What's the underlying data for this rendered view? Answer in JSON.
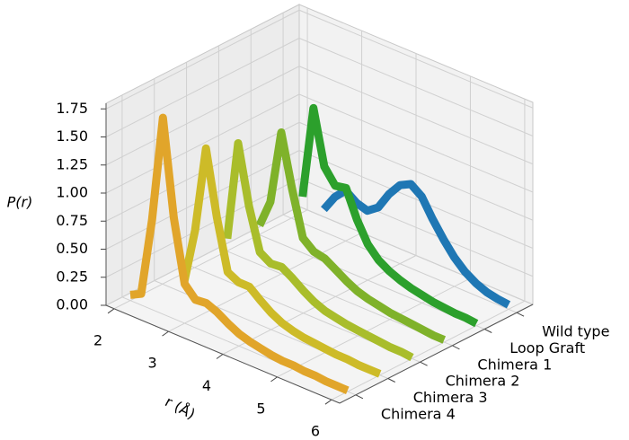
{
  "chart_data": {
    "type": "line3d",
    "x_label": "r (Å)",
    "z_label": "P(r)",
    "x": [
      2.0,
      2.2,
      2.4,
      2.6,
      2.8,
      3.0,
      3.2,
      3.4,
      3.6,
      3.8,
      4.0,
      4.2,
      4.4,
      4.6,
      4.8,
      5.0,
      5.2,
      5.4,
      5.6,
      5.8,
      6.0
    ],
    "series": [
      {
        "name": "Wild type",
        "color": "#1f77b4",
        "values": [
          null,
          null,
          null,
          0.2,
          0.35,
          0.45,
          0.38,
          0.35,
          0.42,
          0.58,
          0.7,
          0.75,
          0.68,
          0.52,
          0.38,
          0.26,
          0.17,
          0.11,
          0.07,
          0.05,
          0.04
        ]
      },
      {
        "name": "Loop Graft",
        "color": "#2ca02c",
        "values": [
          null,
          null,
          null,
          null,
          0.5,
          1.33,
          0.85,
          0.72,
          0.74,
          0.5,
          0.32,
          0.22,
          0.16,
          0.12,
          0.09,
          0.07,
          0.05,
          0.04,
          0.03,
          0.03,
          0.02
        ]
      },
      {
        "name": "Chimera 1",
        "color": "#7fb22a",
        "values": [
          null,
          null,
          null,
          0.35,
          0.6,
          1.26,
          0.8,
          0.4,
          0.32,
          0.3,
          0.24,
          0.18,
          0.13,
          0.1,
          0.08,
          0.06,
          0.05,
          0.04,
          0.03,
          0.02,
          0.02
        ]
      },
      {
        "name": "Chimera 2",
        "color": "#a9bd2b",
        "values": [
          null,
          null,
          null,
          0.38,
          1.27,
          0.75,
          0.38,
          0.32,
          0.33,
          0.27,
          0.2,
          0.14,
          0.1,
          0.08,
          0.06,
          0.05,
          0.04,
          0.03,
          0.02,
          0.02,
          0.01
        ]
      },
      {
        "name": "Chimera 3",
        "color": "#cdbb28",
        "values": [
          null,
          null,
          0.1,
          0.6,
          1.37,
          0.8,
          0.35,
          0.3,
          0.3,
          0.22,
          0.15,
          0.1,
          0.07,
          0.05,
          0.04,
          0.03,
          0.02,
          0.02,
          0.01,
          0.01,
          0.01
        ]
      },
      {
        "name": "Chimera 4",
        "color": "#e1a52a",
        "values": [
          0.05,
          0.1,
          0.8,
          1.75,
          0.9,
          0.35,
          0.25,
          0.26,
          0.22,
          0.16,
          0.11,
          0.08,
          0.06,
          0.04,
          0.03,
          0.03,
          0.02,
          0.02,
          0.01,
          0.01,
          0.01
        ]
      }
    ],
    "xlim": [
      1.85,
      6.15
    ],
    "xticks": [
      2,
      3,
      4,
      5,
      6
    ],
    "zlim": [
      0,
      1.8
    ],
    "zticks": [
      {
        "value": 0,
        "label": "0.00"
      },
      {
        "value": 0.25,
        "label": "0.25"
      },
      {
        "value": 0.5,
        "label": "0.50"
      },
      {
        "value": 0.75,
        "label": "0.75"
      },
      {
        "value": 1,
        "label": "1.00"
      },
      {
        "value": 1.25,
        "label": "1.25"
      },
      {
        "value": 1.5,
        "label": "1.50"
      },
      {
        "value": 1.75,
        "label": "1.75"
      }
    ],
    "grid": true
  }
}
